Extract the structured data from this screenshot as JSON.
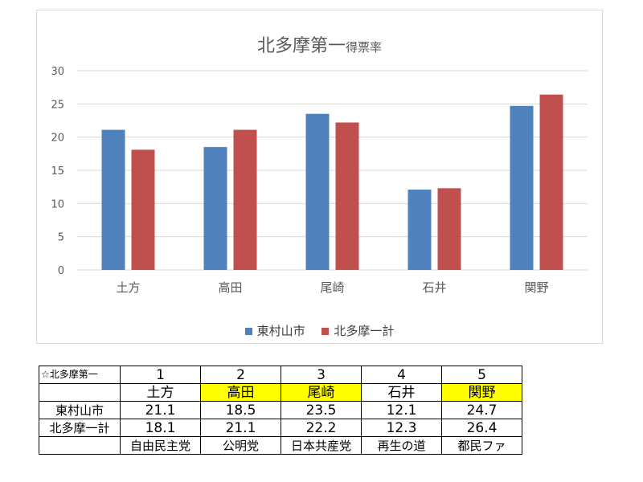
{
  "chart_data": {
    "type": "bar",
    "title_main": "北多摩第一",
    "title_suffix": "得票率",
    "categories": [
      "土方",
      "高田",
      "尾崎",
      "石井",
      "関野"
    ],
    "series": [
      {
        "name": "東村山市",
        "color": "#4f81bd",
        "values": [
          21.1,
          18.5,
          23.5,
          12.1,
          24.7
        ]
      },
      {
        "name": "北多摩一計",
        "color": "#c0504d",
        "values": [
          18.1,
          21.1,
          22.2,
          12.3,
          26.4
        ]
      }
    ],
    "ylim": [
      0,
      30
    ],
    "yticks": [
      0,
      5,
      10,
      15,
      20,
      25,
      30
    ],
    "grid": true,
    "legend": "bottom"
  },
  "table": {
    "corner": "☆北多摩第一",
    "ranks": [
      "1",
      "2",
      "3",
      "4",
      "5"
    ],
    "names": [
      "土方",
      "高田",
      "尾崎",
      "石井",
      "関野"
    ],
    "highlight": [
      false,
      true,
      true,
      false,
      true
    ],
    "highlight_color": "#ffff00",
    "rows": [
      {
        "label": "東村山市",
        "values": [
          "21.1",
          "18.5",
          "23.5",
          "12.1",
          "24.7"
        ]
      },
      {
        "label": "北多摩一計",
        "values": [
          "18.1",
          "21.1",
          "22.2",
          "12.3",
          "26.4"
        ]
      }
    ],
    "parties": [
      "自由民主党",
      "公明党",
      "日本共産党",
      "再生の道",
      "都民ファ"
    ]
  }
}
